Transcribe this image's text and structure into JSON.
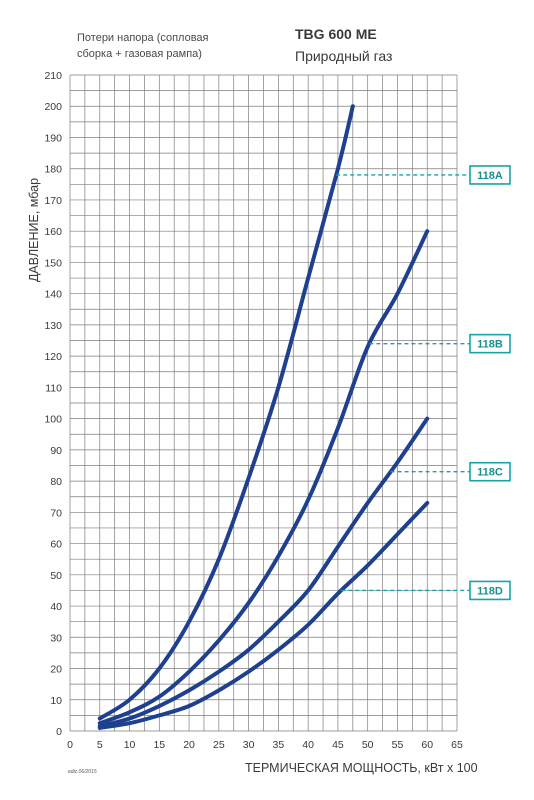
{
  "header": {
    "subtitle_line1": "Потери напора (сопловая",
    "subtitle_line2": "сборка + газовая рампа)",
    "model": "TBG 600 ME",
    "gas": "Природный газ"
  },
  "edition": "ediz.06/2015",
  "colors": {
    "curve": "#1f3f8f",
    "grid": "#7d7d7d",
    "callout": "#1aa3a6"
  },
  "chart_data": {
    "type": "line",
    "xlabel": "ТЕРМИЧЕСКАЯ МОЩНОСТЬ, кВт x 100",
    "ylabel": "ДАВЛЕНИЕ, мбар",
    "xlim": [
      0,
      65
    ],
    "ylim": [
      0,
      210
    ],
    "xticks": [
      0,
      5,
      10,
      15,
      20,
      25,
      30,
      35,
      40,
      45,
      50,
      55,
      60,
      65
    ],
    "yticks": [
      0,
      10,
      20,
      30,
      40,
      50,
      60,
      70,
      80,
      90,
      100,
      110,
      120,
      130,
      140,
      150,
      160,
      170,
      180,
      190,
      200,
      210
    ],
    "grid": true,
    "series": [
      {
        "name": "118A",
        "callout_y": 178,
        "x": [
          5,
          10,
          15,
          20,
          25,
          30,
          35,
          40,
          45,
          47.5
        ],
        "y": [
          4,
          10,
          20,
          35,
          55,
          81,
          110,
          145,
          180,
          200
        ]
      },
      {
        "name": "118B",
        "callout_y": 124,
        "x": [
          5,
          10,
          15,
          20,
          25,
          30,
          35,
          40,
          45,
          50,
          55,
          60
        ],
        "y": [
          2.5,
          6,
          11,
          19,
          29,
          41,
          56,
          74,
          97,
          123,
          140,
          160
        ]
      },
      {
        "name": "118C",
        "callout_y": 83,
        "x": [
          5,
          10,
          15,
          20,
          25,
          30,
          35,
          40,
          45,
          50,
          55,
          60
        ],
        "y": [
          1.5,
          4,
          8,
          13,
          19,
          26,
          35,
          45,
          59,
          73,
          86,
          100
        ]
      },
      {
        "name": "118D",
        "callout_y": 45,
        "x": [
          5,
          10,
          15,
          20,
          25,
          30,
          35,
          40,
          45,
          50,
          55,
          60
        ],
        "y": [
          1,
          2.5,
          5,
          8,
          13,
          19,
          26,
          34,
          44,
          53,
          63,
          73
        ]
      }
    ]
  }
}
